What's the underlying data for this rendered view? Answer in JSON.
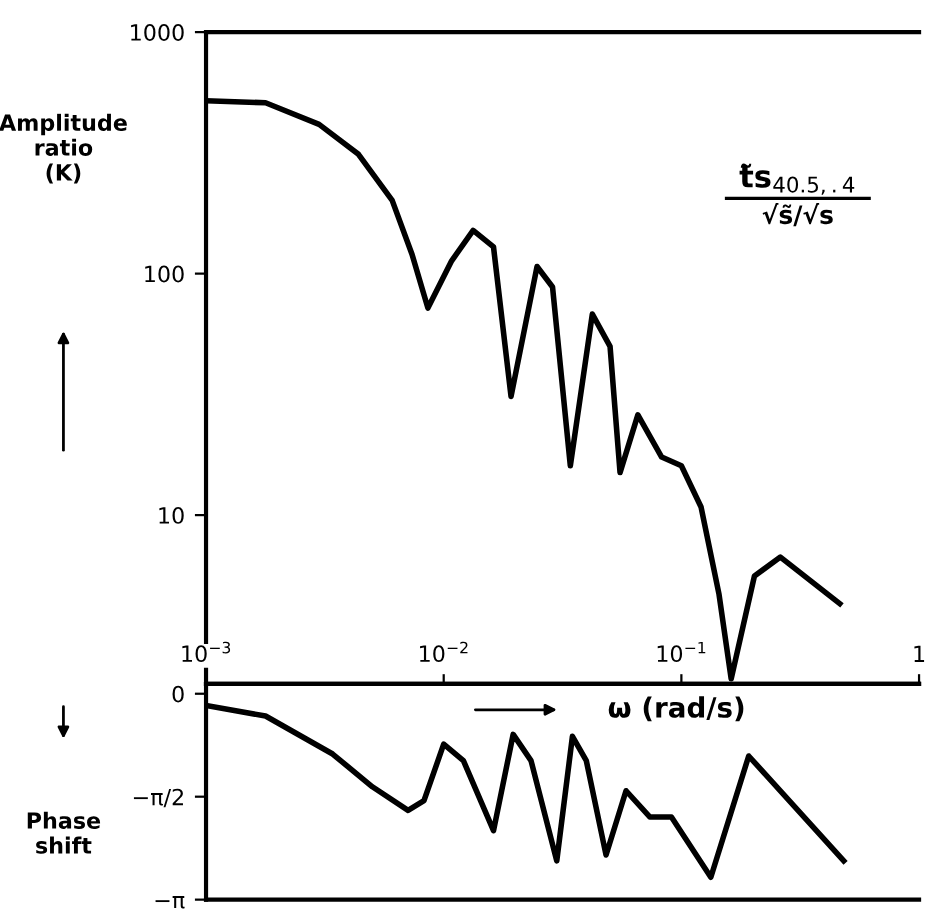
{
  "chart_data": [
    {
      "type": "line",
      "ylabel": "Amplitude\nratio\n(K)",
      "annotations": [
        "t̃s$_{40.5,.4}$",
        "√s̃/√s"
      ],
      "series": [
        {
          "color": "#000000",
          "x": [
            0.001,
            0.00178,
            0.00299,
            0.00438,
            0.00607,
            0.00736,
            0.00858,
            0.0108,
            0.0133,
            0.0162,
            0.0192,
            0.0247,
            0.0287,
            0.0341,
            0.0422,
            0.0501,
            0.0552,
            0.0656,
            0.0826,
            0.1,
            0.121,
            0.144,
            0.162,
            0.203,
            0.261,
            0.464
          ],
          "values": [
            520,
            510,
            415,
            312,
            201,
            120,
            72,
            113,
            151,
            129,
            31,
            107,
            88,
            16,
            68,
            50,
            15,
            26,
            17.4,
            16,
            10.8,
            4.7,
            2.1,
            5.6,
            6.7,
            4.3
          ]
        }
      ],
      "log": "xy",
      "xlim": [
        0.001,
        1
      ],
      "ylim": [
        2,
        1000
      ],
      "xticks": [
        {
          "value": 0.001,
          "label": "10$^{−3}$"
        },
        {
          "value": 0.01,
          "label": "10$^{−2}$"
        },
        {
          "value": 0.1,
          "label": "10$^{−1}$"
        },
        1
      ],
      "yticks": [
        10,
        100,
        1000
      ],
      "grid": false,
      "legend": false,
      "marker": "none",
      "line_style": "solid"
    },
    {
      "type": "line",
      "ylabel": "Phase\nshift",
      "xlabel": "ω (rad/s)",
      "series": [
        {
          "color": "#000000",
          "x": [
            0.001,
            0.00178,
            0.00341,
            0.00501,
            0.00708,
            0.00826,
            0.01,
            0.0121,
            0.0162,
            0.0196,
            0.0233,
            0.0299,
            0.0348,
            0.0398,
            0.0482,
            0.0585,
            0.0736,
            0.0908,
            0.133,
            0.192,
            0.482
          ],
          "values": [
            -0.18,
            -0.34,
            -0.92,
            -1.42,
            -1.78,
            -1.63,
            -0.77,
            -1.02,
            -2.09,
            -0.62,
            -1.02,
            -2.55,
            -0.65,
            -1.02,
            -2.46,
            -1.48,
            -1.88,
            -1.88,
            -2.8,
            -0.95,
            -2.55
          ]
        }
      ],
      "log": "x",
      "xlim": [
        0.001,
        1
      ],
      "ylim": [
        -3.1416,
        0.15
      ],
      "yticks": [
        0,
        {
          "value": -1.5708,
          "label": "−π/2"
        },
        {
          "value": -3.1416,
          "label": "−π"
        }
      ],
      "tick_labels": "y",
      "grid": false,
      "legend": false,
      "marker": "none",
      "line_style": "solid"
    }
  ]
}
